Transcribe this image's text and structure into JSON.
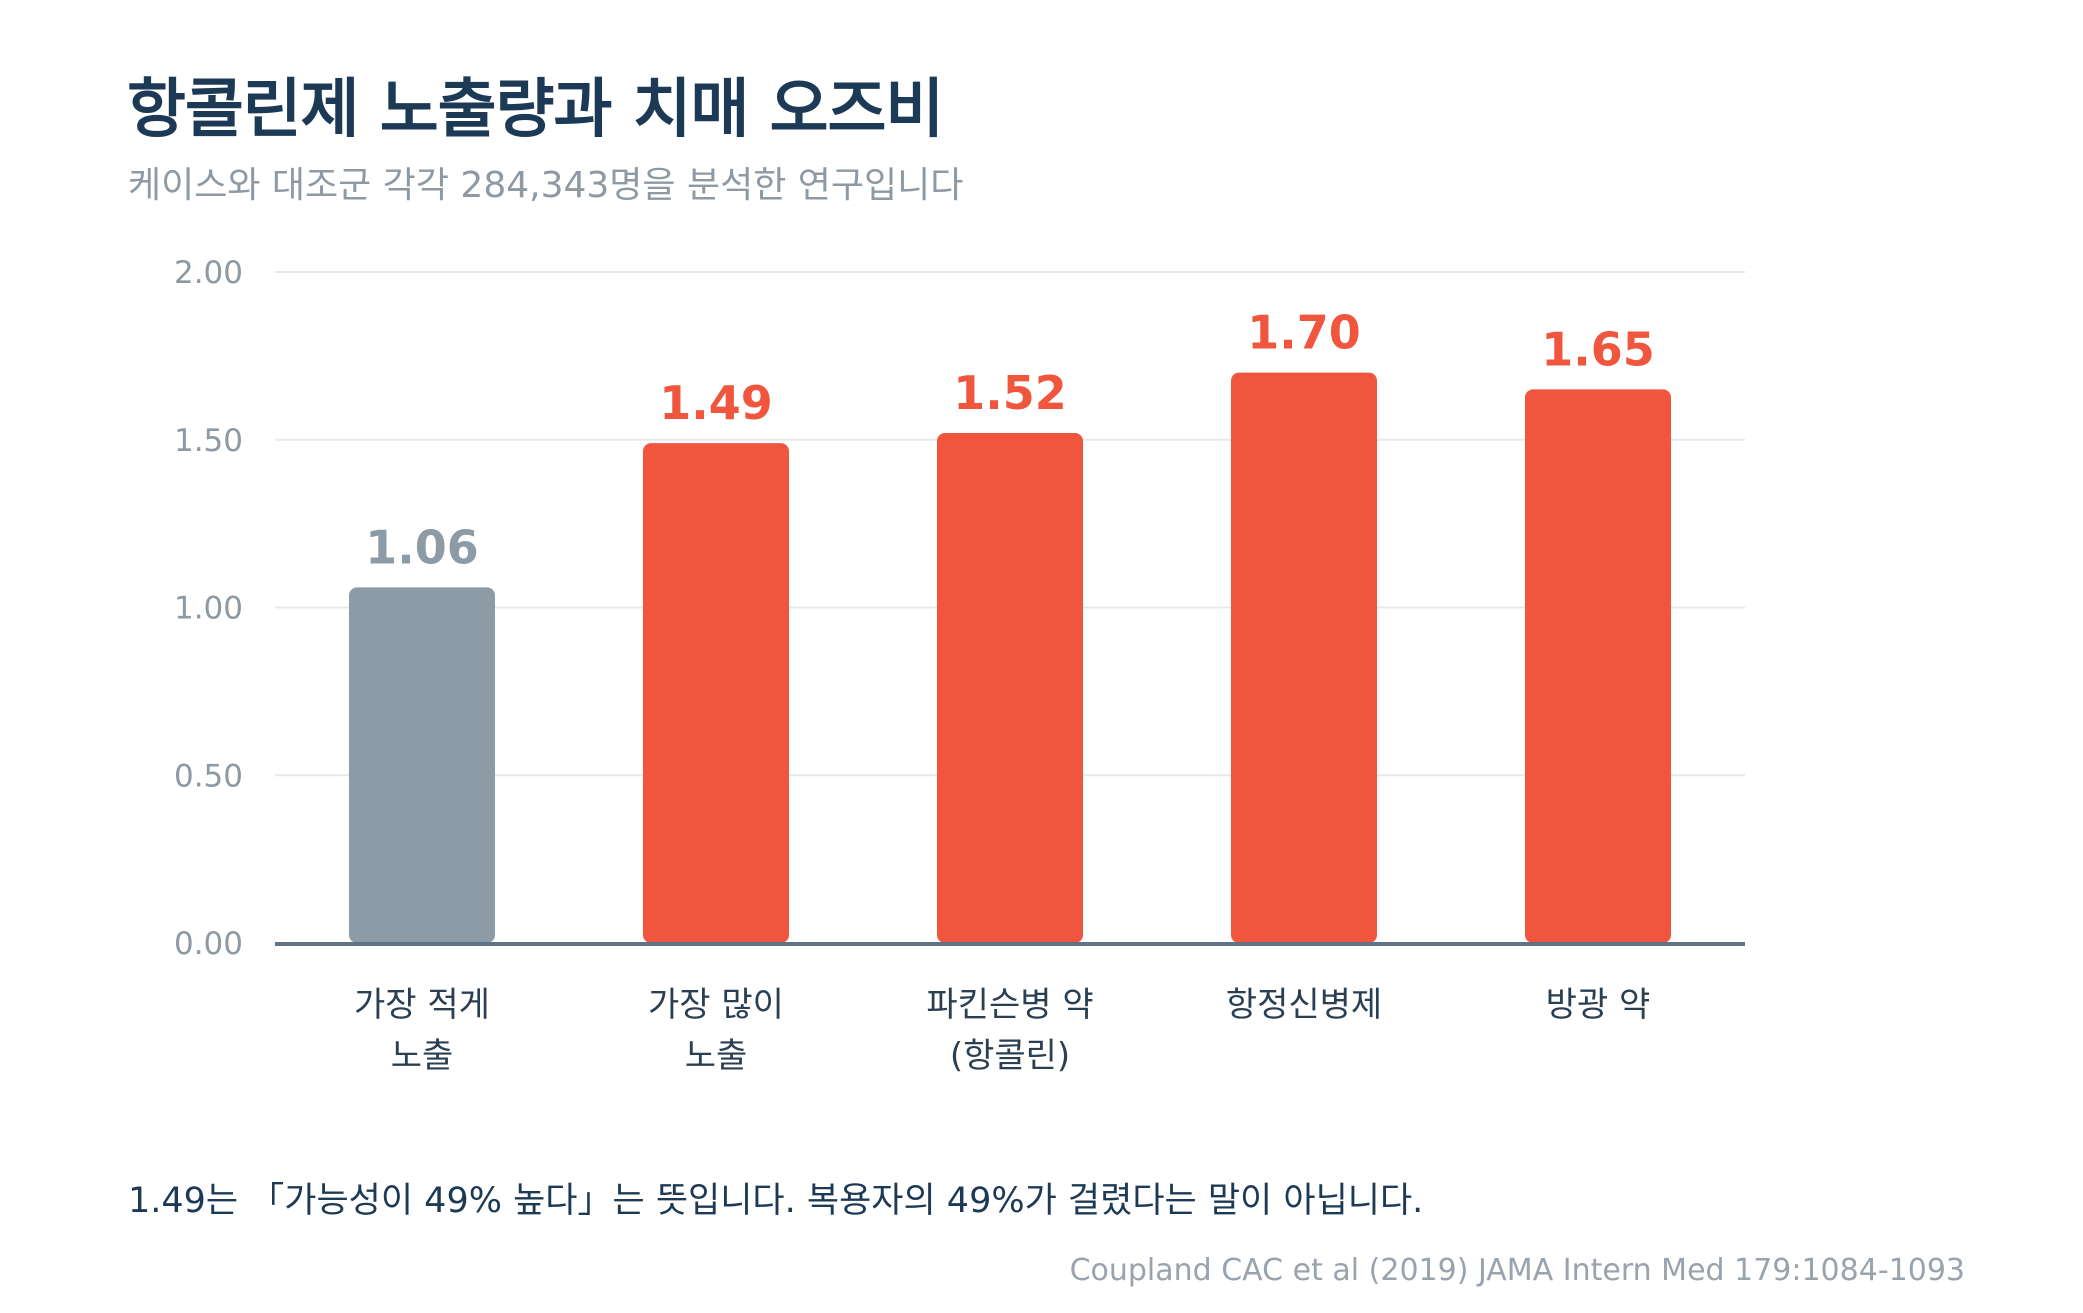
{
  "header": {
    "title": "항콜린제 노출량과 치매 오즈비",
    "subtitle": "케이스와 대조군 각각 284,343명을 분석한 연구입니다"
  },
  "chart_data": {
    "type": "bar",
    "categories": [
      [
        "가장 적게",
        "노출"
      ],
      [
        "가장 많이",
        "노출"
      ],
      [
        "파킨슨병 약",
        "(항콜린)"
      ],
      [
        "항정신병제"
      ],
      [
        "방광 약"
      ]
    ],
    "values": [
      1.06,
      1.49,
      1.52,
      1.7,
      1.65
    ],
    "value_labels": [
      "1.06",
      "1.49",
      "1.52",
      "1.70",
      "1.65"
    ],
    "bar_colors": [
      "#8d9ba6",
      "#f0563d",
      "#f0563d",
      "#f0563d",
      "#f0563d"
    ],
    "ylim": [
      0,
      2.0
    ],
    "yticks": [
      0,
      0.5,
      1.0,
      1.5,
      2.0
    ],
    "ytick_labels": [
      "0.00",
      "0.50",
      "1.00",
      "1.50",
      "2.00"
    ],
    "grid": true,
    "colors": {
      "gridline": "#e6e9ec",
      "baseline": "#5f7387",
      "tick_text": "#8e99a4",
      "category_text": "#2a3f52"
    }
  },
  "footer": {
    "note": "1.49는 「가능성이 49% 높다」는 뜻입니다. 복용자의 49%가 걸렸다는 말이 아닙니다.",
    "source": "Coupland CAC et al (2019) JAMA Intern Med 179:1084-1093"
  }
}
